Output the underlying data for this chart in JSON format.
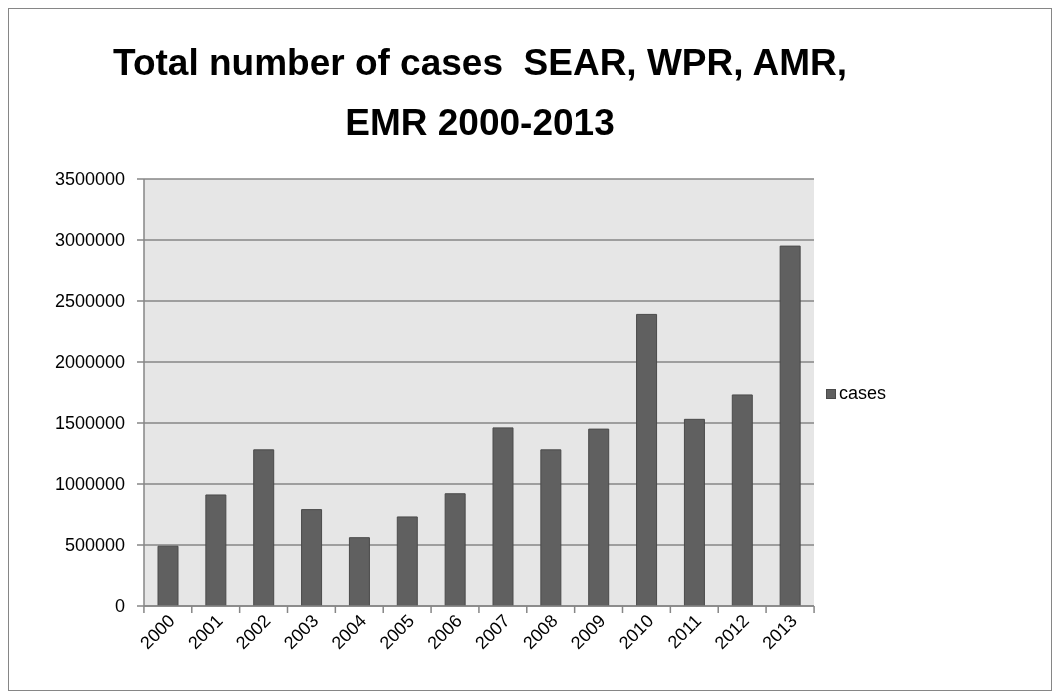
{
  "chart_data": {
    "type": "bar",
    "title": "Total number of cases  SEAR, WPR, AMR, EMR 2000-2013",
    "categories": [
      "2000",
      "2001",
      "2002",
      "2003",
      "2004",
      "2005",
      "2006",
      "2007",
      "2008",
      "2009",
      "2010",
      "2011",
      "2012",
      "2013"
    ],
    "series": [
      {
        "name": "cases",
        "color": "#606060",
        "values": [
          490000,
          910000,
          1280000,
          790000,
          560000,
          730000,
          920000,
          1460000,
          1280000,
          1450000,
          2390000,
          1530000,
          1730000,
          2950000
        ]
      }
    ],
    "ylim": [
      0,
      3500000
    ],
    "yticks": [
      0,
      500000,
      1000000,
      1500000,
      2000000,
      2500000,
      3000000,
      3500000
    ],
    "grid": "y",
    "legend": "right"
  }
}
